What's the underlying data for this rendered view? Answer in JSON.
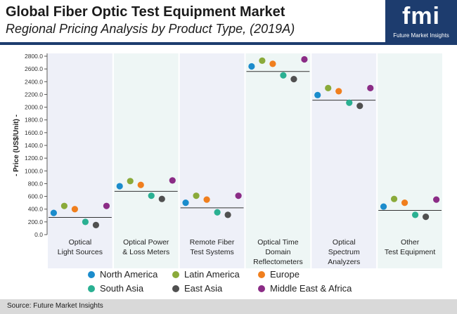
{
  "header": {
    "title": "Global Fiber Optic Test Equipment Market",
    "subtitle": "Regional Pricing Analysis by Product Type, (2019A)",
    "logo_text": "fmi",
    "logo_subtext": "Future Market Insights"
  },
  "footer": {
    "source": "Source: Future Market Insights"
  },
  "colors": {
    "header_bar": "#1d3c6e",
    "panel_light": "#eef0f8",
    "panel_mint": "#eef6f5"
  },
  "chart_data": {
    "type": "scatter",
    "ylabel": "- Price (US$/Unit) -",
    "ylim": [
      0,
      2800
    ],
    "ytick_step": 200,
    "categories": [
      [
        "Optical",
        "Light Sources"
      ],
      [
        "Optical Power",
        "& Loss Meters"
      ],
      [
        "Remote Fiber",
        "Test Systems"
      ],
      [
        "Optical Time",
        "Domain",
        "Reflectometers"
      ],
      [
        "Optical",
        "Spectrum",
        "Analyzers"
      ],
      [
        "Other",
        "Test Equipment"
      ]
    ],
    "averages": [
      270,
      680,
      420,
      2560,
      2110,
      380
    ],
    "series": [
      {
        "name": "North America",
        "color": "#1b8ccc",
        "values": [
          340,
          760,
          500,
          2640,
          2190,
          440
        ]
      },
      {
        "name": "Latin America",
        "color": "#8aaa3a",
        "values": [
          450,
          840,
          610,
          2730,
          2300,
          560
        ]
      },
      {
        "name": "Europe",
        "color": "#f07f1e",
        "values": [
          400,
          780,
          550,
          2680,
          2250,
          500
        ]
      },
      {
        "name": "South Asia",
        "color": "#2ab092",
        "values": [
          200,
          610,
          350,
          2500,
          2070,
          310
        ]
      },
      {
        "name": "East Asia",
        "color": "#505050",
        "values": [
          150,
          560,
          310,
          2440,
          2020,
          280
        ]
      },
      {
        "name": "Middle East & Africa",
        "color": "#8b2c86",
        "values": [
          450,
          850,
          610,
          2750,
          2300,
          550
        ]
      }
    ],
    "legend_position": "bottom",
    "grid": false
  }
}
